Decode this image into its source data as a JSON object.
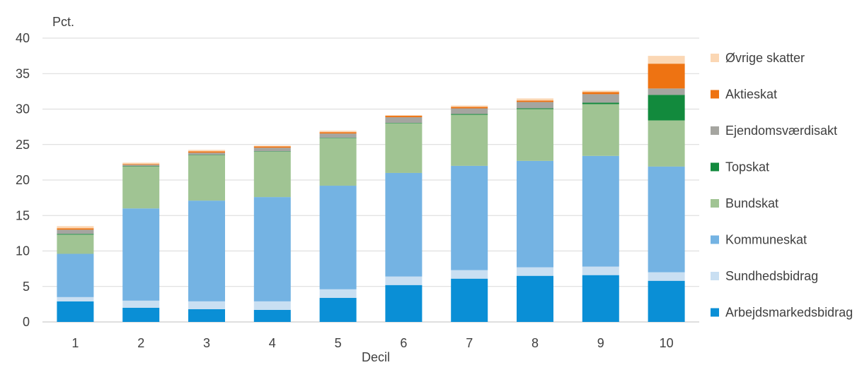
{
  "chart_data": {
    "type": "bar",
    "stacked": true,
    "ylabel": "Pct.",
    "xlabel": "Decil",
    "ylim": [
      0,
      40
    ],
    "yticks": [
      0,
      5,
      10,
      15,
      20,
      25,
      30,
      35,
      40
    ],
    "grid": true,
    "legend_position": "right",
    "categories": [
      "1",
      "2",
      "3",
      "4",
      "5",
      "6",
      "7",
      "8",
      "9",
      "10"
    ],
    "series": [
      {
        "name": "Arbejdsmarkedsbidrag",
        "color": "#0a8fd6",
        "values": [
          2.9,
          2.0,
          1.8,
          1.7,
          3.4,
          5.2,
          6.1,
          6.5,
          6.6,
          5.8
        ]
      },
      {
        "name": "Sundhedsbidrag",
        "color": "#c9dff2",
        "values": [
          0.6,
          1.0,
          1.1,
          1.2,
          1.2,
          1.2,
          1.2,
          1.2,
          1.2,
          1.2
        ]
      },
      {
        "name": "Kommuneskat",
        "color": "#74b3e3",
        "values": [
          6.1,
          13.0,
          14.2,
          14.7,
          14.6,
          14.6,
          14.7,
          15.0,
          15.6,
          14.9
        ]
      },
      {
        "name": "Bundskat",
        "color": "#a0c493",
        "values": [
          2.7,
          5.9,
          6.4,
          6.4,
          6.7,
          7.0,
          7.2,
          7.3,
          7.3,
          6.5
        ]
      },
      {
        "name": "Topskat",
        "color": "#128a3d",
        "values": [
          0.1,
          0.05,
          0.05,
          0.05,
          0.05,
          0.05,
          0.1,
          0.1,
          0.2,
          3.6
        ]
      },
      {
        "name": "Ejendomsværdisakt",
        "color": "#a5a5a0",
        "values": [
          0.6,
          0.2,
          0.3,
          0.5,
          0.6,
          0.8,
          0.8,
          0.9,
          1.2,
          0.9
        ]
      },
      {
        "name": "Aktieskat",
        "color": "#ee7312",
        "values": [
          0.2,
          0.1,
          0.2,
          0.2,
          0.2,
          0.2,
          0.2,
          0.2,
          0.3,
          3.5
        ]
      },
      {
        "name": "Øvrige skatter",
        "color": "#fbd7b4",
        "values": [
          0.3,
          0.2,
          0.2,
          0.1,
          0.2,
          0.1,
          0.2,
          0.3,
          0.2,
          1.1
        ]
      }
    ]
  }
}
